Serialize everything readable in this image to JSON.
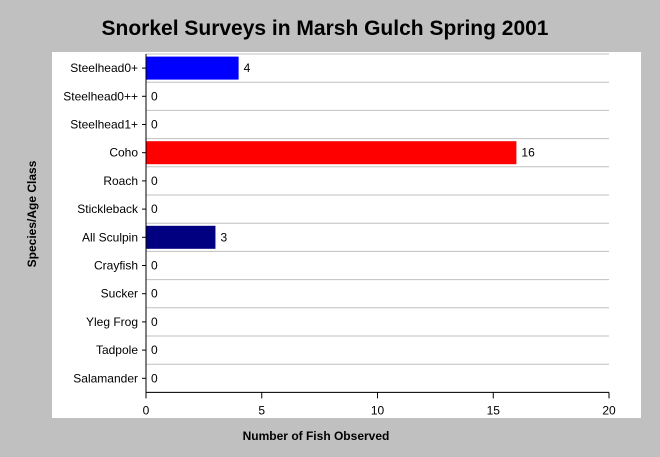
{
  "chart_data": {
    "type": "bar",
    "orientation": "horizontal",
    "title": "Snorkel Surveys in Marsh Gulch Spring 2001",
    "xlabel": "Number of Fish Observed",
    "ylabel": "Species/Age Class",
    "categories": [
      "Steelhead0+",
      "Steelhead0++",
      "Steelhead1+",
      "Coho",
      "Roach",
      "Stickleback",
      "All Sculpin",
      "Crayfish",
      "Sucker",
      "Yleg Frog",
      "Tadpole",
      "Salamander"
    ],
    "values": [
      4,
      0,
      0,
      16,
      0,
      0,
      3,
      0,
      0,
      0,
      0,
      0
    ],
    "value_labels": [
      "4",
      "0",
      "0",
      "16",
      "0",
      "0",
      "3",
      "0",
      "0",
      "0",
      "0",
      "0"
    ],
    "bar_colors": [
      "#0000ff",
      "#0000ff",
      "#0000ff",
      "#ff0000",
      "#0000ff",
      "#0000ff",
      "#000080",
      "#0000ff",
      "#0000ff",
      "#0000ff",
      "#0000ff",
      "#0000ff"
    ],
    "xlim": [
      0,
      20
    ],
    "xticks": [
      0,
      5,
      10,
      15,
      20
    ],
    "xtick_labels": [
      "0",
      "5",
      "10",
      "15",
      "20"
    ],
    "grid": "horizontal",
    "colors": {
      "background": "#c0c0c0",
      "plot_background": "#ffffff",
      "gridline": "#c0c0c0"
    }
  }
}
